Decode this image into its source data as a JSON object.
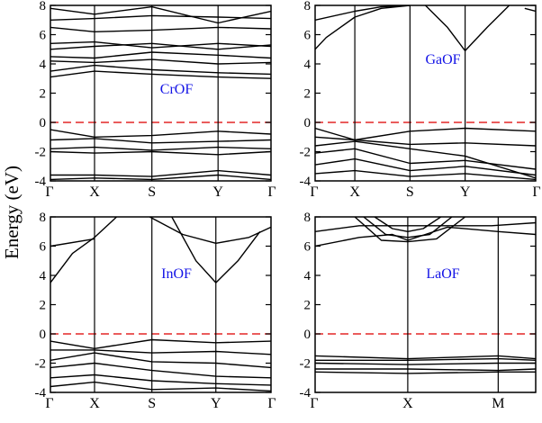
{
  "figure": {
    "ylabel": "Energy (eV)",
    "colors": {
      "bands": "#000000",
      "fermi": "#e32626",
      "label": "#1414e6"
    }
  },
  "chart_data": [
    {
      "type": "line",
      "material": "CrOF",
      "ylim": [
        -4,
        8
      ],
      "yticks": [
        "-4",
        "-2",
        "0",
        "2",
        "4",
        "6",
        "8"
      ],
      "kpoints": [
        {
          "label": "Γ",
          "pos": 0
        },
        {
          "label": "X",
          "pos": 0.2
        },
        {
          "label": "S",
          "pos": 0.46
        },
        {
          "label": "Y",
          "pos": 0.76
        },
        {
          "label": "Γ",
          "pos": 1
        }
      ],
      "fermi_level": 0,
      "series": [
        {
          "x": [
            0,
            0.2,
            0.46,
            0.76,
            1
          ],
          "y": [
            7.8,
            7.4,
            7.9,
            6.8,
            7.6
          ]
        },
        {
          "x": [
            0,
            0.2,
            0.46,
            0.76,
            1
          ],
          "y": [
            7.0,
            7.1,
            7.3,
            7.2,
            7.1
          ]
        },
        {
          "x": [
            0,
            0.2,
            0.46,
            0.76,
            1
          ],
          "y": [
            6.5,
            6.2,
            6.3,
            6.5,
            6.4
          ]
        },
        {
          "x": [
            0,
            0.2,
            0.46,
            0.76,
            1
          ],
          "y": [
            5.4,
            5.5,
            5.1,
            5.4,
            5.2
          ]
        },
        {
          "x": [
            0,
            0.2,
            0.46,
            0.76,
            1
          ],
          "y": [
            5.0,
            5.2,
            5.4,
            5.0,
            5.3
          ]
        },
        {
          "x": [
            0,
            0.2,
            0.46,
            0.76,
            1
          ],
          "y": [
            4.5,
            4.4,
            4.8,
            4.6,
            4.4
          ]
        },
        {
          "x": [
            0,
            0.2,
            0.46,
            0.76,
            1
          ],
          "y": [
            4.2,
            4.1,
            4.3,
            4.0,
            4.1
          ]
        },
        {
          "x": [
            0,
            0.2,
            0.46,
            0.76,
            1
          ],
          "y": [
            3.5,
            3.9,
            3.6,
            3.4,
            3.3
          ]
        },
        {
          "x": [
            0,
            0.2,
            0.46,
            0.76,
            1
          ],
          "y": [
            3.1,
            3.5,
            3.3,
            3.1,
            3.0
          ]
        },
        {
          "x": [
            0,
            0.2,
            0.46,
            0.76,
            1
          ],
          "y": [
            -0.5,
            -1.0,
            -0.9,
            -0.6,
            -0.8
          ]
        },
        {
          "x": [
            0,
            0.2,
            0.46,
            0.76,
            1
          ],
          "y": [
            -1.2,
            -1.1,
            -1.4,
            -1.3,
            -1.2
          ]
        },
        {
          "x": [
            0,
            0.2,
            0.46,
            0.76,
            1
          ],
          "y": [
            -1.8,
            -1.7,
            -1.9,
            -1.7,
            -1.8
          ]
        },
        {
          "x": [
            0,
            0.2,
            0.46,
            0.76,
            1
          ],
          "y": [
            -2.0,
            -2.1,
            -2.0,
            -2.2,
            -2.0
          ]
        },
        {
          "x": [
            0,
            0.2,
            0.46,
            0.76,
            1
          ],
          "y": [
            -3.6,
            -3.6,
            -3.7,
            -3.3,
            -3.6
          ]
        },
        {
          "x": [
            0,
            0.2,
            0.46,
            0.76,
            1
          ],
          "y": [
            -3.9,
            -3.8,
            -3.9,
            -3.6,
            -3.9
          ]
        }
      ]
    },
    {
      "type": "line",
      "material": "GaOF",
      "ylim": [
        -4,
        8
      ],
      "yticks": [
        "-4",
        "-2",
        "0",
        "2",
        "4",
        "6",
        "8"
      ],
      "kpoints": [
        {
          "label": "Γ",
          "pos": 0
        },
        {
          "label": "X",
          "pos": 0.18
        },
        {
          "label": "S",
          "pos": 0.43
        },
        {
          "label": "Y",
          "pos": 0.68
        },
        {
          "label": "Γ",
          "pos": 1
        }
      ],
      "fermi_level": 0,
      "series": [
        {
          "x": [
            0,
            0.05,
            0.18,
            0.3,
            0.43
          ],
          "y": [
            5.0,
            5.8,
            7.2,
            7.8,
            8.0
          ]
        },
        {
          "x": [
            0,
            0.18,
            0.3,
            0.43
          ],
          "y": [
            7.0,
            7.6,
            7.9,
            8.0
          ]
        },
        {
          "x": [
            0.5,
            0.6,
            0.68,
            0.78,
            0.88
          ],
          "y": [
            8.0,
            6.5,
            4.9,
            6.5,
            8.0
          ]
        },
        {
          "x": [
            0.95,
            1
          ],
          "y": [
            7.8,
            7.6
          ]
        },
        {
          "x": [
            0,
            0.18,
            0.43,
            0.68,
            1
          ],
          "y": [
            -0.4,
            -1.2,
            -0.6,
            -0.4,
            -0.6
          ]
        },
        {
          "x": [
            0,
            0.18,
            0.43,
            0.68,
            1
          ],
          "y": [
            -1.0,
            -1.2,
            -1.5,
            -1.4,
            -1.6
          ]
        },
        {
          "x": [
            0,
            0.18,
            0.43,
            0.68,
            1
          ],
          "y": [
            -1.6,
            -1.3,
            -1.8,
            -2.3,
            -3.8
          ]
        },
        {
          "x": [
            0,
            0.18,
            0.43,
            0.68,
            1
          ],
          "y": [
            -2.1,
            -1.8,
            -2.8,
            -2.6,
            -3.2
          ]
        },
        {
          "x": [
            0,
            0.18,
            0.43,
            0.68,
            1
          ],
          "y": [
            -2.9,
            -2.5,
            -3.3,
            -3.0,
            -3.6
          ]
        },
        {
          "x": [
            0,
            0.18,
            0.43,
            0.68,
            1
          ],
          "y": [
            -3.5,
            -3.3,
            -3.7,
            -3.5,
            -3.9
          ]
        }
      ]
    },
    {
      "type": "line",
      "material": "InOF",
      "ylim": [
        -4,
        8
      ],
      "yticks": [
        "-4",
        "-2",
        "0",
        "2",
        "4",
        "6",
        "8"
      ],
      "kpoints": [
        {
          "label": "Γ",
          "pos": 0
        },
        {
          "label": "X",
          "pos": 0.2
        },
        {
          "label": "S",
          "pos": 0.46
        },
        {
          "label": "Y",
          "pos": 0.75
        },
        {
          "label": "Γ",
          "pos": 1
        }
      ],
      "fermi_level": 0,
      "series": [
        {
          "x": [
            0,
            0.1,
            0.2,
            0.3
          ],
          "y": [
            3.5,
            5.5,
            6.6,
            8.0
          ]
        },
        {
          "x": [
            0,
            0.2
          ],
          "y": [
            6.0,
            6.5
          ]
        },
        {
          "x": [
            0.45,
            0.6,
            0.75,
            0.9,
            1
          ],
          "y": [
            8.0,
            6.8,
            6.2,
            6.6,
            7.3
          ]
        },
        {
          "x": [
            0.55,
            0.66,
            0.75,
            0.85,
            0.95
          ],
          "y": [
            8.0,
            5.0,
            3.5,
            5.0,
            7.0
          ]
        },
        {
          "x": [
            0,
            0.2,
            0.46,
            0.75,
            1
          ],
          "y": [
            -0.5,
            -1.0,
            -0.4,
            -0.6,
            -0.5
          ]
        },
        {
          "x": [
            0,
            0.2,
            0.46,
            0.75,
            1
          ],
          "y": [
            -1.1,
            -1.1,
            -1.3,
            -1.2,
            -1.4
          ]
        },
        {
          "x": [
            0,
            0.2,
            0.46,
            0.75,
            1
          ],
          "y": [
            -1.8,
            -1.3,
            -1.9,
            -2.0,
            -2.3
          ]
        },
        {
          "x": [
            0,
            0.2,
            0.46,
            0.75,
            1
          ],
          "y": [
            -2.3,
            -2.0,
            -2.5,
            -2.9,
            -3.0
          ]
        },
        {
          "x": [
            0,
            0.2,
            0.46,
            0.75,
            1
          ],
          "y": [
            -3.0,
            -2.8,
            -3.2,
            -3.4,
            -3.5
          ]
        },
        {
          "x": [
            0,
            0.2,
            0.46,
            0.75,
            1
          ],
          "y": [
            -3.6,
            -3.3,
            -3.8,
            -3.7,
            -3.9
          ]
        }
      ]
    },
    {
      "type": "line",
      "material": "LaOF",
      "ylim": [
        -4,
        8
      ],
      "yticks": [
        "-4",
        "-2",
        "0",
        "2",
        "4",
        "6",
        "8"
      ],
      "kpoints": [
        {
          "label": "Γ",
          "pos": 0
        },
        {
          "label": "X",
          "pos": 0.42
        },
        {
          "label": "M",
          "pos": 0.83
        }
      ],
      "fermi_level": 0,
      "series": [
        {
          "x": [
            0,
            0.2,
            0.35,
            0.42,
            0.5,
            0.6,
            0.83,
            1
          ],
          "y": [
            6.0,
            6.6,
            6.8,
            6.4,
            6.8,
            7.3,
            7.0,
            6.8
          ]
        },
        {
          "x": [
            0,
            0.2,
            0.8,
            1
          ],
          "y": [
            7.0,
            7.4,
            7.4,
            7.6
          ]
        },
        {
          "x": [
            0.18,
            0.3,
            0.42,
            0.55,
            0.68
          ],
          "y": [
            8.0,
            6.4,
            6.3,
            6.5,
            8.0
          ]
        },
        {
          "x": [
            0.22,
            0.32,
            0.42,
            0.52,
            0.62
          ],
          "y": [
            8.0,
            6.8,
            6.6,
            6.8,
            8.0
          ]
        },
        {
          "x": [
            0.27,
            0.35,
            0.42,
            0.49,
            0.57
          ],
          "y": [
            8.0,
            7.2,
            7.0,
            7.2,
            8.0
          ]
        },
        {
          "x": [
            0,
            0.42,
            0.83,
            1
          ],
          "y": [
            -1.5,
            -1.7,
            -1.5,
            -1.7
          ]
        },
        {
          "x": [
            0,
            0.42,
            0.83,
            1
          ],
          "y": [
            -1.8,
            -1.8,
            -1.7,
            -1.8
          ]
        },
        {
          "x": [
            0,
            0.42,
            0.83,
            1
          ],
          "y": [
            -2.0,
            -2.1,
            -2.0,
            -2.0
          ]
        },
        {
          "x": [
            0,
            0.42,
            0.83,
            1
          ],
          "y": [
            -2.4,
            -2.4,
            -2.5,
            -2.4
          ]
        },
        {
          "x": [
            0,
            0.42,
            0.83,
            1
          ],
          "y": [
            -2.6,
            -2.7,
            -2.6,
            -2.6
          ]
        }
      ]
    }
  ]
}
